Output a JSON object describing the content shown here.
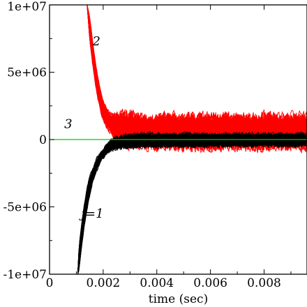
{
  "chart_data": {
    "type": "line",
    "title": "",
    "xlabel": "time (sec)",
    "ylabel": "",
    "xlim": [
      0,
      0.0096
    ],
    "ylim": [
      -10000000,
      10000000
    ],
    "grid": false,
    "x_ticks": [
      {
        "value": 0,
        "label": "0"
      },
      {
        "value": 0.002,
        "label": "0.002"
      },
      {
        "value": 0.004,
        "label": "0.004"
      },
      {
        "value": 0.006,
        "label": "0.006"
      },
      {
        "value": 0.008,
        "label": "0.008"
      }
    ],
    "y_ticks": [
      {
        "value": -10000000,
        "label": "-1e+07"
      },
      {
        "value": -5000000,
        "label": "-5e+06"
      },
      {
        "value": 0,
        "label": "0"
      },
      {
        "value": 5000000,
        "label": "5e+06"
      },
      {
        "value": 10000000,
        "label": "1e+07"
      }
    ],
    "annotations": [
      {
        "text": "2",
        "x": 0.00175,
        "y": 7000000
      },
      {
        "text": "3",
        "x": 0.0007,
        "y": 850000
      },
      {
        "text": "j=1",
        "x": 0.0016,
        "y": -5800000
      }
    ],
    "series": [
      {
        "color": "#ff0000",
        "x": [
          0.0014,
          0.0015,
          0.0016,
          0.0017,
          0.0018,
          0.0019,
          0.002,
          0.0021,
          0.0022,
          0.0023,
          0.0024,
          0.0026,
          0.0028,
          0.003,
          0.0035,
          0.004,
          0.0045,
          0.005,
          0.0055,
          0.006,
          0.0065,
          0.007,
          0.0075,
          0.008,
          0.0085,
          0.009,
          0.0096
        ],
        "y": [
          10000000,
          8200000,
          6500000,
          5000000,
          3800000,
          2900000,
          2200000,
          1700000,
          1400000,
          1200000,
          1100000,
          1000000,
          950000,
          900000,
          900000,
          850000,
          900000,
          850000,
          800000,
          850000,
          850000,
          800000,
          850000,
          850000,
          800000,
          850000,
          800000
        ],
        "y_low": [
          10000000,
          7300000,
          5600000,
          4100000,
          2900000,
          2000000,
          1300000,
          800000,
          400000,
          100000,
          -300000,
          -700000,
          -900000,
          -1100000,
          -1100000,
          -1200000,
          -1150000,
          -1200000,
          -1200000,
          -1250000,
          -1200000,
          -1150000,
          -1200000,
          -1200000,
          -1150000,
          -1200000,
          -1150000
        ],
        "y_high": [
          10000000,
          9200000,
          7600000,
          6000000,
          4800000,
          3800000,
          3100000,
          2600000,
          2300000,
          2200000,
          2300000,
          2400000,
          2400000,
          2500000,
          2300000,
          2200000,
          2400000,
          2300000,
          2400000,
          2300000,
          2400000,
          2300000,
          2300000,
          2400000,
          2300000,
          2300000,
          2400000
        ]
      },
      {
        "color": "#000000",
        "x": [
          0.00105,
          0.0011,
          0.0012,
          0.0013,
          0.0014,
          0.0015,
          0.0016,
          0.0017,
          0.0018,
          0.0019,
          0.002,
          0.0021,
          0.0022,
          0.0023,
          0.0024,
          0.0026,
          0.0028,
          0.003,
          0.0035,
          0.004,
          0.0045,
          0.005,
          0.0055,
          0.006,
          0.0065,
          0.007,
          0.0075,
          0.008,
          0.0085,
          0.009,
          0.0096
        ],
        "y": [
          -10000000,
          -8800000,
          -7000000,
          -5600000,
          -4400000,
          -3500000,
          -2800000,
          -2200000,
          -1700000,
          -1300000,
          -1000000,
          -750000,
          -550000,
          -400000,
          -300000,
          -200000,
          -150000,
          -100000,
          -80000,
          -60000,
          -50000,
          -40000,
          -40000,
          -30000,
          -30000,
          -30000,
          -30000,
          -20000,
          -20000,
          -20000,
          -20000
        ],
        "y_low": [
          -10000000,
          -9800000,
          -8000000,
          -6600000,
          -5400000,
          -4300000,
          -3500000,
          -2800000,
          -2300000,
          -1900000,
          -1600000,
          -1300000,
          -1100000,
          -1000000,
          -900000,
          -850000,
          -800000,
          -800000,
          -750000,
          -750000,
          -700000,
          -750000,
          -700000,
          -700000,
          -700000,
          -650000,
          -700000,
          -650000,
          -650000,
          -700000,
          -650000
        ],
        "y_high": [
          -10000000,
          -7900000,
          -6100000,
          -4700000,
          -3500000,
          -2600000,
          -2000000,
          -1500000,
          -1100000,
          -750000,
          -500000,
          -250000,
          -50000,
          150000,
          300000,
          450000,
          550000,
          600000,
          650000,
          650000,
          600000,
          650000,
          600000,
          650000,
          600000,
          650000,
          600000,
          650000,
          600000,
          600000,
          650000
        ]
      },
      {
        "color": "#00cc00",
        "x": [
          0,
          0.0096
        ],
        "y": [
          0,
          0
        ]
      }
    ]
  }
}
